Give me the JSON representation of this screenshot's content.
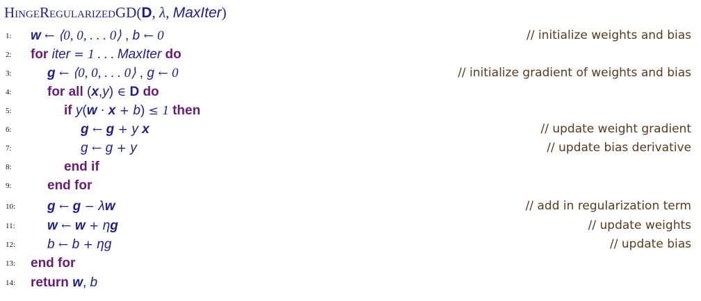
{
  "header": {
    "name_first_big": "H",
    "name_first_small": "INGE",
    "name_second_big": "R",
    "name_second_small": "EGULARIZED",
    "name_third": "GD",
    "open_paren": "(",
    "arg_data": "D",
    "sep1": ", ",
    "arg_lambda": "λ",
    "sep2": ", ",
    "arg_maxiter": "MaxIter",
    "close_paren": ")"
  },
  "lines": [
    {
      "num": "1:",
      "comment": "// initialize weights and bias"
    },
    {
      "num": "2:",
      "comment": ""
    },
    {
      "num": "3:",
      "comment": "// initialize gradient of weights and bias"
    },
    {
      "num": "4:",
      "comment": ""
    },
    {
      "num": "5:",
      "comment": ""
    },
    {
      "num": "6:",
      "comment": "// update weight gradient"
    },
    {
      "num": "7:",
      "comment": "// update bias derivative"
    },
    {
      "num": "8:",
      "comment": ""
    },
    {
      "num": "9:",
      "comment": ""
    },
    {
      "num": "10:",
      "comment": "// add in regularization term"
    },
    {
      "num": "11:",
      "comment": "// update weights"
    },
    {
      "num": "12:",
      "comment": "// update bias"
    },
    {
      "num": "13:",
      "comment": ""
    },
    {
      "num": "14:",
      "comment": ""
    }
  ],
  "code": {
    "l1": {
      "w": "w",
      "arrow1": " ← ",
      "vec": "⟨0, 0, . . . 0⟩",
      "sep": "  ,  ",
      "b": "b",
      "arrow2": " ← ",
      "zero": "0"
    },
    "l2": {
      "kw_for": "for",
      "iter": "iter",
      "eq": " = ",
      "range": "1 . . . ",
      "maxiter": "MaxIter",
      "kw_do": "do"
    },
    "l3": {
      "g": "g",
      "arrow1": " ← ",
      "vec": "⟨0, 0, . . . 0⟩",
      "sep": "  ,  ",
      "g2": "g",
      "arrow2": " ← ",
      "zero": "0"
    },
    "l4": {
      "kw_forall": "for all",
      "open": " (",
      "x": "x",
      "comma": ",",
      "y": "y",
      "close": ")",
      "in": " ∈ ",
      "D": "D",
      "kw_do": "do"
    },
    "l5": {
      "kw_if": "if",
      "y": "y",
      "open": "(",
      "w": "w",
      "dot": " · ",
      "x": "x",
      "plus": " + ",
      "b": "b",
      "close": ")",
      "le": " ≤ ",
      "one": "1",
      "kw_then": "then"
    },
    "l6": {
      "g": "g",
      "arrow": " ← ",
      "g2": "g",
      "plus": " + ",
      "y": "y",
      "x": "x"
    },
    "l7": {
      "g": "g",
      "arrow": " ← ",
      "g2": "g",
      "plus": " + ",
      "y": "y"
    },
    "l8": {
      "kw": "end if"
    },
    "l9": {
      "kw": "end for"
    },
    "l10": {
      "g": "g",
      "arrow": " ← ",
      "g2": "g",
      "minus": " − ",
      "lam": "λ",
      "w": "w"
    },
    "l11": {
      "w": "w",
      "arrow": " ← ",
      "w2": "w",
      "plus": " + ",
      "eta": "η",
      "g": "g"
    },
    "l12": {
      "b": "b",
      "arrow": " ← ",
      "b2": "b",
      "plus": " + ",
      "eta": "η",
      "g": "g"
    },
    "l13": {
      "kw": "end for"
    },
    "l14": {
      "kw": "return",
      "w": "w",
      "comma": ", ",
      "b": "b"
    }
  }
}
